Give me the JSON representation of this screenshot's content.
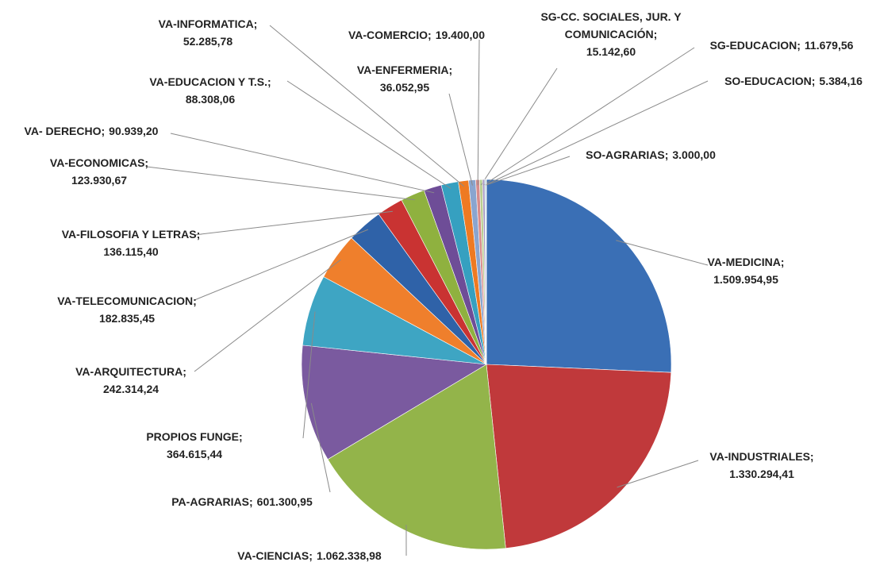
{
  "chart_data": {
    "type": "pie",
    "categories": [
      "VA-MEDICINA;",
      "VA-INDUSTRIALES;",
      "VA-CIENCIAS;",
      "PA-AGRARIAS;",
      "PROPIOS FUNGE;",
      "VA-ARQUITECTURA;",
      "VA-TELECOMUNICACION;",
      "VA-FILOSOFIA Y LETRAS;",
      "VA-ECONOMICAS;",
      "VA- DERECHO;",
      "VA-EDUCACION Y T.S.;",
      "VA-INFORMATICA;",
      "VA-ENFERMERIA;",
      "VA-COMERCIO;",
      "SG-CC. SOCIALES, JUR. Y COMUNICACIÓN;",
      "SG-EDUCACION;",
      "SO-EDUCACION;",
      "SO-AGRARIAS;"
    ],
    "values": [
      1509954.95,
      1330294.41,
      1062338.98,
      601300.95,
      364615.44,
      242314.24,
      182835.45,
      136115.4,
      123930.67,
      90939.2,
      88308.06,
      52285.78,
      36052.95,
      19400.0,
      15142.6,
      11679.56,
      5384.16,
      3000.0
    ],
    "value_labels": [
      "1.509.954,95",
      "1.330.294,41",
      "1.062.338,98",
      "601.300,95",
      "364.615,44",
      "242.314,24",
      "182.835,45",
      "136.115,40",
      "123.930,67",
      "90.939,20",
      "88.308,06",
      "52.285,78",
      "36.052,95",
      "19.400,00",
      "15.142,60",
      "11.679,56",
      "5.384,16",
      "3.000,00"
    ],
    "colors": [
      "#3a6fb5",
      "#c0393b",
      "#93b44a",
      "#7a5a9f",
      "#3ea5c3",
      "#ef7f2c",
      "#2f62a8",
      "#c93332",
      "#8fb13f",
      "#6e4d97",
      "#36a0c0",
      "#ee7a22",
      "#8aa5cf",
      "#d88c8b",
      "#b9cf8f",
      "#ab9bc5",
      "#97c9dc",
      "#f4b58d"
    ]
  }
}
